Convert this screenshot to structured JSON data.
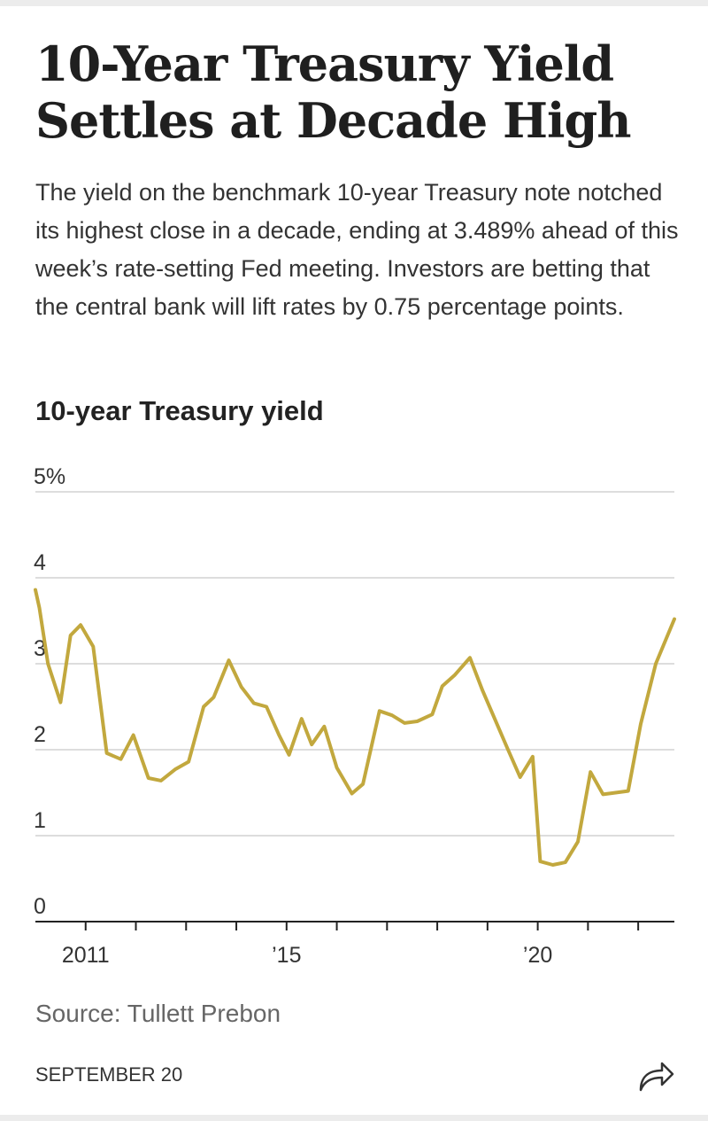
{
  "article": {
    "headline": "10-Year Treasury Yield Settles at Decade High",
    "dek": "The yield on the benchmark 10-year Treasury note notched its highest close in a decade, ending at 3.489% ahead of this week’s rate-setting Fed meeting. Investors are betting that the central bank will lift rates by 0.75 percentage points.",
    "source": "Source: Tullett Prebon",
    "date": "SEPTEMBER 20",
    "share_icon": "share-arrow-icon"
  },
  "chart_data": {
    "type": "line",
    "title": "10-year Treasury yield",
    "xlabel": "",
    "ylabel": "",
    "ylim": [
      0,
      5
    ],
    "xlim": [
      2010.0,
      2022.72
    ],
    "y_ticks": [
      {
        "value": 0,
        "label": "0"
      },
      {
        "value": 1,
        "label": "1"
      },
      {
        "value": 2,
        "label": "2"
      },
      {
        "value": 3,
        "label": "3"
      },
      {
        "value": 4,
        "label": "4"
      },
      {
        "value": 5,
        "label": "5%"
      }
    ],
    "x_ticks": [
      2011,
      2012,
      2013,
      2014,
      2015,
      2016,
      2017,
      2018,
      2019,
      2020,
      2021,
      2022
    ],
    "x_tick_labels": [
      {
        "value": 2011,
        "label": "2011"
      },
      {
        "value": 2015,
        "label": "’15"
      },
      {
        "value": 2020,
        "label": "’20"
      }
    ],
    "grid": true,
    "line_color": "#c2a83e",
    "series": [
      {
        "values": [
          [
            2010.0,
            3.86
          ],
          [
            2010.08,
            3.65
          ],
          [
            2010.25,
            3.0
          ],
          [
            2010.5,
            2.55
          ],
          [
            2010.7,
            3.33
          ],
          [
            2010.9,
            3.45
          ],
          [
            2011.15,
            3.2
          ],
          [
            2011.42,
            1.96
          ],
          [
            2011.7,
            1.89
          ],
          [
            2011.95,
            2.17
          ],
          [
            2012.25,
            1.67
          ],
          [
            2012.5,
            1.64
          ],
          [
            2012.78,
            1.77
          ],
          [
            2013.05,
            1.86
          ],
          [
            2013.35,
            2.5
          ],
          [
            2013.55,
            2.61
          ],
          [
            2013.85,
            3.04
          ],
          [
            2014.1,
            2.73
          ],
          [
            2014.35,
            2.54
          ],
          [
            2014.6,
            2.5
          ],
          [
            2014.85,
            2.17
          ],
          [
            2015.05,
            1.94
          ],
          [
            2015.3,
            2.36
          ],
          [
            2015.5,
            2.06
          ],
          [
            2015.75,
            2.27
          ],
          [
            2016.0,
            1.79
          ],
          [
            2016.3,
            1.49
          ],
          [
            2016.52,
            1.6
          ],
          [
            2016.85,
            2.45
          ],
          [
            2017.1,
            2.4
          ],
          [
            2017.35,
            2.31
          ],
          [
            2017.6,
            2.33
          ],
          [
            2017.9,
            2.41
          ],
          [
            2018.1,
            2.74
          ],
          [
            2018.35,
            2.87
          ],
          [
            2018.65,
            3.07
          ],
          [
            2018.9,
            2.69
          ],
          [
            2019.1,
            2.42
          ],
          [
            2019.4,
            2.01
          ],
          [
            2019.65,
            1.68
          ],
          [
            2019.9,
            1.92
          ],
          [
            2020.05,
            0.7
          ],
          [
            2020.3,
            0.66
          ],
          [
            2020.55,
            0.69
          ],
          [
            2020.8,
            0.93
          ],
          [
            2021.05,
            1.74
          ],
          [
            2021.3,
            1.48
          ],
          [
            2021.55,
            1.5
          ],
          [
            2021.8,
            1.52
          ],
          [
            2022.05,
            2.3
          ],
          [
            2022.35,
            3.0
          ],
          [
            2022.72,
            3.52
          ]
        ]
      }
    ]
  }
}
